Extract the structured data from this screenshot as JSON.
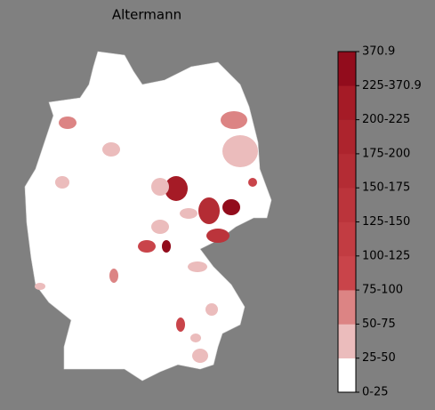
{
  "title": "Altermann",
  "legend": {
    "labels": [
      "0-25",
      "25-50",
      "50-75",
      "75-100",
      "100-125",
      "125-150",
      "150-175",
      "175-200",
      "200-225",
      "225-370.9",
      "370.9"
    ],
    "colors": [
      "#ffffff",
      "#ebbcbc",
      "#dc8484",
      "#c9444a",
      "#c23c42",
      "#bb343b",
      "#b42c34",
      "#ad242d",
      "#a51b26",
      "#920c1c"
    ]
  }
}
